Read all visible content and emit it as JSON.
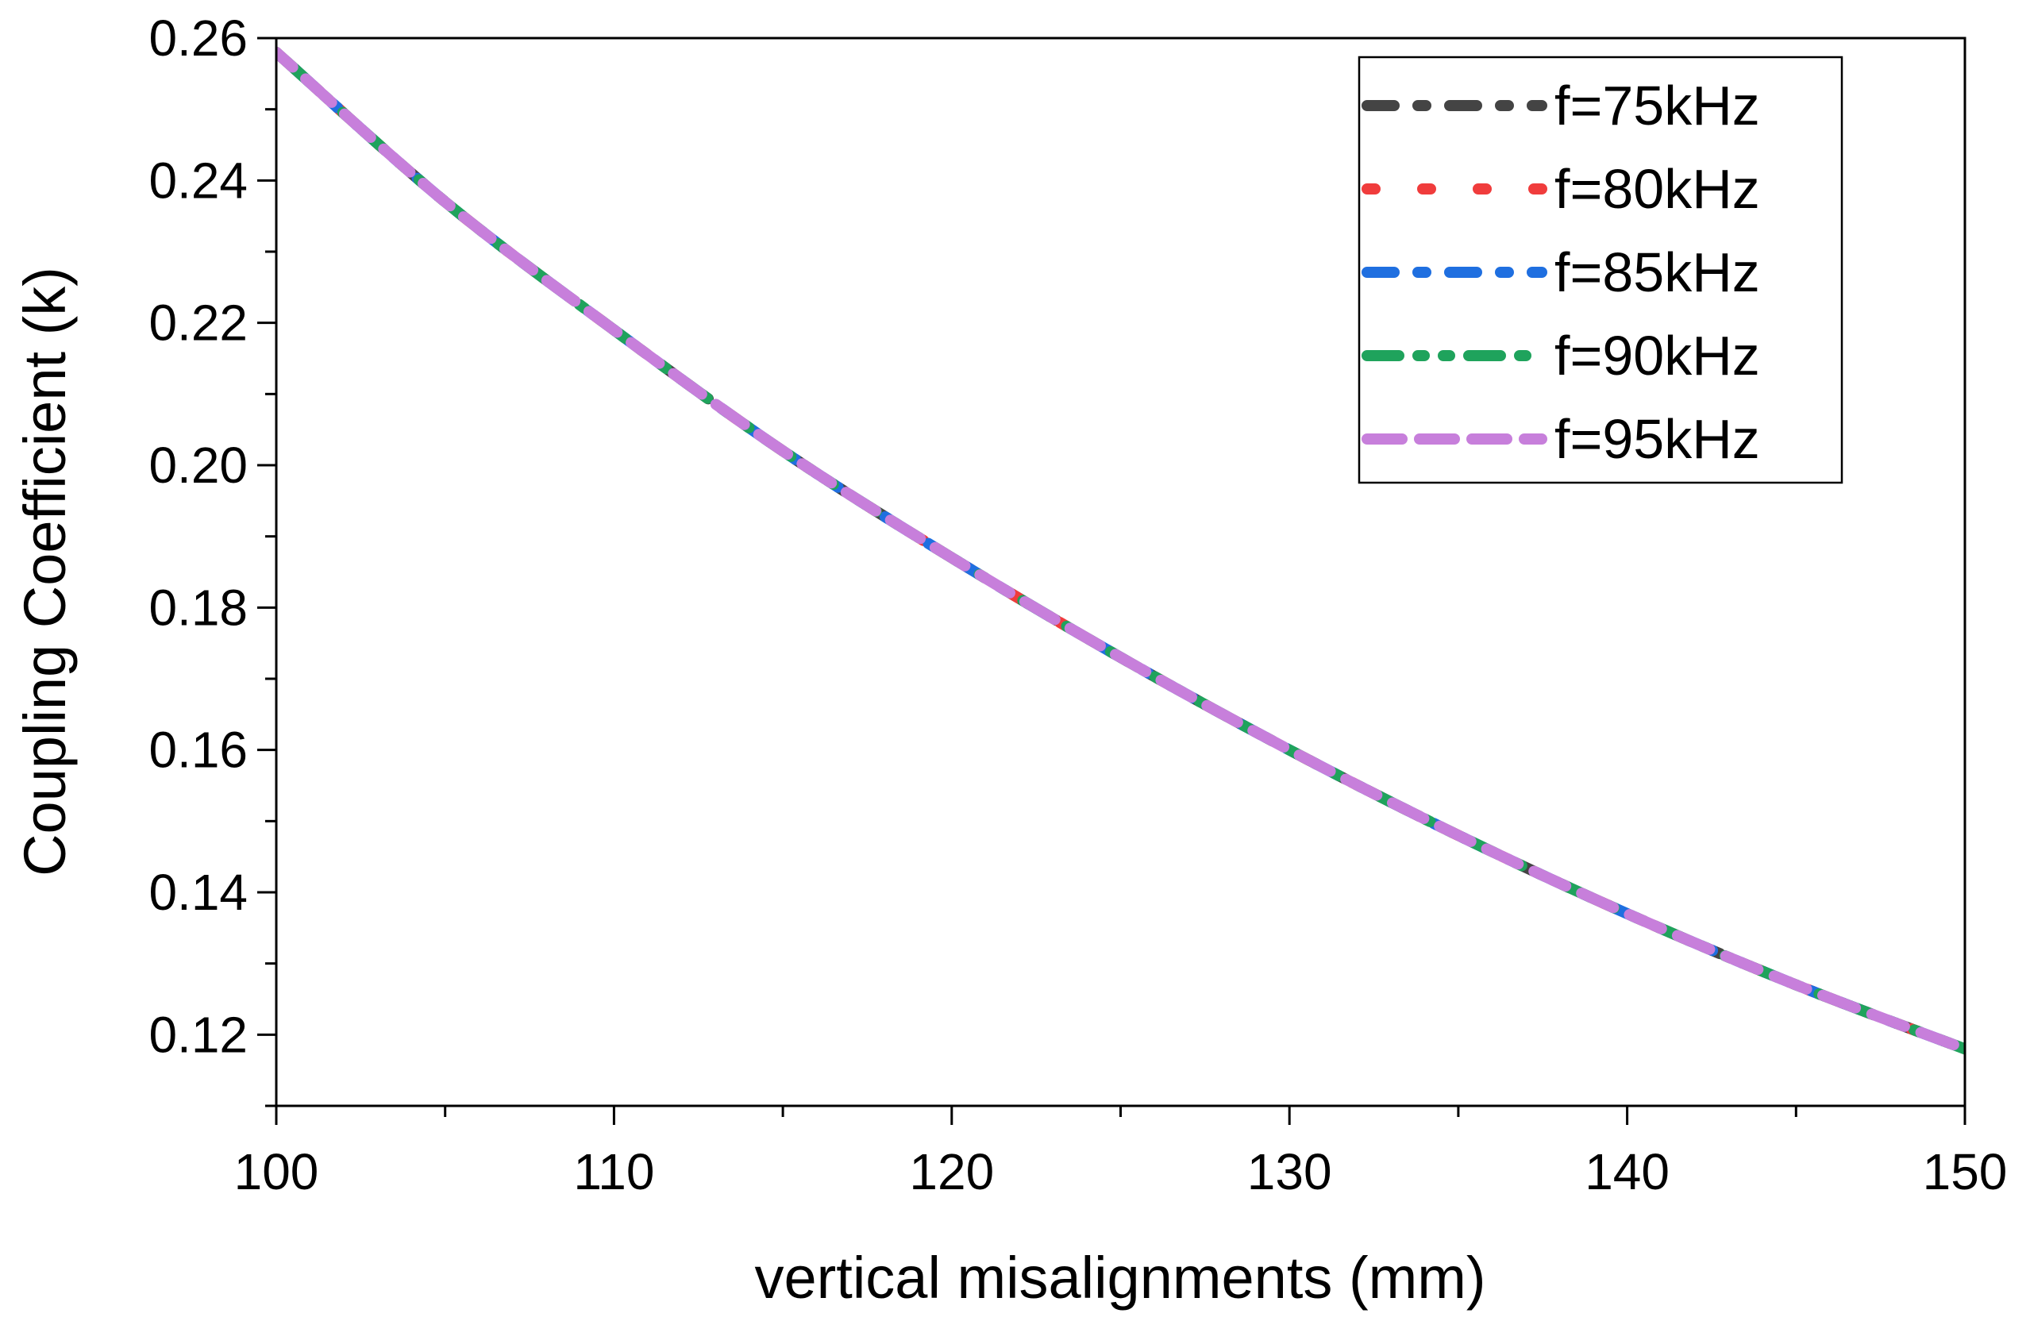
{
  "chart_data": {
    "type": "line",
    "title": "",
    "xlabel": "vertical misalignments (mm)",
    "ylabel": "Coupling Coefficient (k)",
    "xlim": [
      100,
      150
    ],
    "ylim": [
      0.11,
      0.26
    ],
    "x_ticks": [
      100,
      110,
      120,
      130,
      140,
      150
    ],
    "x_tick_labels": [
      "100",
      "110",
      "120",
      "130",
      "140",
      "150"
    ],
    "y_ticks": [
      0.12,
      0.14,
      0.16,
      0.18,
      0.2,
      0.22,
      0.24,
      0.26
    ],
    "y_tick_labels": [
      "0.12",
      "0.14",
      "0.16",
      "0.18",
      "0.20",
      "0.22",
      "0.24",
      "0.26"
    ],
    "grid": false,
    "legend_position": "top-right",
    "x": [
      100,
      105,
      110,
      115,
      120,
      125,
      130,
      135,
      140,
      145,
      150
    ],
    "series": [
      {
        "name": "f=75kHz",
        "color": "#444444",
        "dash": "dash-dot",
        "values": [
          0.258,
          0.237,
          0.219,
          0.202,
          0.187,
          0.173,
          0.16,
          0.148,
          0.137,
          0.127,
          0.118
        ]
      },
      {
        "name": "f=80kHz",
        "color": "#f03c3c",
        "dash": "dot",
        "values": [
          0.258,
          0.237,
          0.219,
          0.202,
          0.187,
          0.173,
          0.16,
          0.148,
          0.137,
          0.127,
          0.118
        ]
      },
      {
        "name": "f=85kHz",
        "color": "#1f6fe0",
        "dash": "dash-dot",
        "values": [
          0.258,
          0.237,
          0.219,
          0.202,
          0.187,
          0.173,
          0.16,
          0.148,
          0.137,
          0.127,
          0.118
        ]
      },
      {
        "name": "f=90kHz",
        "color": "#1fa35c",
        "dash": "dash-dot-dot",
        "values": [
          0.258,
          0.237,
          0.219,
          0.202,
          0.187,
          0.173,
          0.16,
          0.148,
          0.137,
          0.127,
          0.118
        ]
      },
      {
        "name": "f=95kHz",
        "color": "#c77fdb",
        "dash": "dash",
        "values": [
          0.258,
          0.237,
          0.219,
          0.202,
          0.187,
          0.173,
          0.16,
          0.148,
          0.137,
          0.127,
          0.118
        ]
      }
    ]
  }
}
